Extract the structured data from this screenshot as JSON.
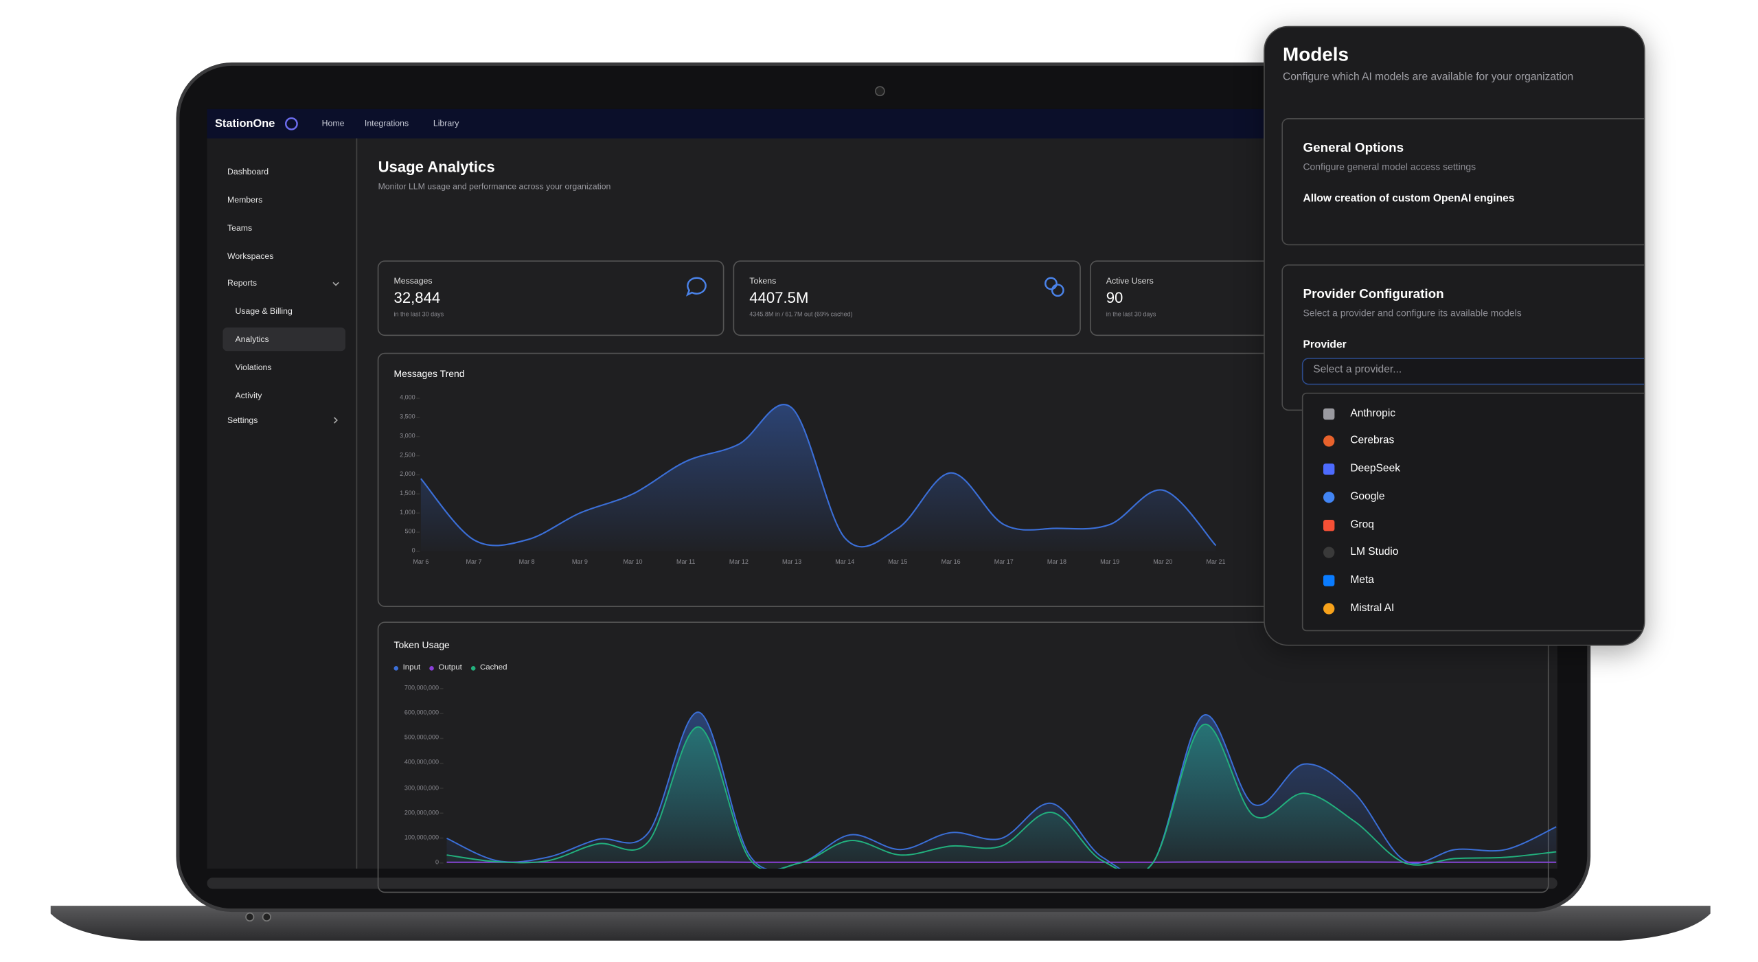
{
  "nav": {
    "brand": "StationOne",
    "links": [
      "Home",
      "Integrations",
      "Library"
    ]
  },
  "sidebar": {
    "items": [
      "Dashboard",
      "Members",
      "Teams",
      "Workspaces",
      "Reports"
    ],
    "reports_items": [
      "Usage & Billing",
      "Analytics",
      "Violations",
      "Activity"
    ],
    "settings": "Settings"
  },
  "page": {
    "title": "Usage Analytics",
    "subtitle": "Monitor LLM usage and performance across your organization"
  },
  "stats": [
    {
      "label": "Messages",
      "value": "32,844",
      "note": "in the last 30 days"
    },
    {
      "label": "Tokens",
      "value": "4407.5M",
      "note": "4345.8M in / 61.7M out (69% cached)"
    },
    {
      "label": "Active Users",
      "value": "90",
      "note": "in the last 30 days"
    }
  ],
  "messages_trend": {
    "type": "line",
    "title": "Messages Trend",
    "color": "#3b6fd8",
    "categories": [
      "Mar 6",
      "Mar 7",
      "Mar 8",
      "Mar 9",
      "Mar 10",
      "Mar 11",
      "Mar 12",
      "Mar 13",
      "Mar 14",
      "Mar 15",
      "Mar 16",
      "Mar 17",
      "Mar 18",
      "Mar 19",
      "Mar 20",
      "Mar 21"
    ],
    "values": [
      1900,
      300,
      300,
      1000,
      1500,
      2350,
      2800,
      3750,
      350,
      600,
      2050,
      700,
      600,
      700,
      1600,
      150
    ],
    "ylim": [
      0,
      4000
    ],
    "yticks": [
      0,
      500,
      {
        "value": 1000,
        "label": "1,000"
      },
      {
        "value": 1500,
        "label": "1,500"
      },
      {
        "value": 2000,
        "label": "2,000"
      },
      {
        "value": 2500,
        "label": "2,500"
      },
      {
        "value": 3000,
        "label": "3,000"
      },
      {
        "value": 3500,
        "label": "3,500"
      },
      {
        "value": 4000,
        "label": "4,000"
      }
    ]
  },
  "token_usage": {
    "type": "area",
    "title": "Token Usage",
    "series": [
      {
        "name": "Input",
        "color": "#3b6fd8",
        "values": [
          99000000,
          9000000,
          23000000,
          95000000,
          122000000,
          605000000,
          32000000,
          0,
          113000000,
          54000000,
          122000000,
          99000000,
          239000000,
          23000000,
          0,
          592000000,
          235000000,
          397000000,
          280000000,
          9000000,
          54000000,
          54000000,
          145000000
        ]
      },
      {
        "name": "Output",
        "color": "#8b3fd9",
        "values": [
          3000000,
          3000000,
          3000000,
          3000000,
          3000000,
          4000000,
          3000000,
          3000000,
          3000000,
          3000000,
          3000000,
          3000000,
          4000000,
          3000000,
          3000000,
          4000000,
          4000000,
          4000000,
          4000000,
          3000000,
          3000000,
          3000000,
          3000000
        ]
      },
      {
        "name": "Cached",
        "color": "#22b07d",
        "values": [
          32000000,
          5000000,
          9000000,
          77000000,
          86000000,
          546000000,
          18000000,
          0,
          90000000,
          32000000,
          68000000,
          68000000,
          203000000,
          9000000,
          0,
          555000000,
          190000000,
          280000000,
          167000000,
          0,
          18000000,
          23000000,
          45000000
        ]
      }
    ],
    "ylim": [
      0,
      700000000
    ],
    "yticks": [
      0,
      {
        "value": 100000000,
        "label": "100,000,000"
      },
      {
        "value": 200000000,
        "label": "200,000,000"
      },
      {
        "value": 300000000,
        "label": "300,000,000"
      },
      {
        "value": 400000000,
        "label": "400,000,000"
      },
      {
        "value": 500000000,
        "label": "500,000,000"
      },
      {
        "value": 600000000,
        "label": "600,000,000"
      },
      {
        "value": 700000000,
        "label": "700,000,000"
      }
    ]
  },
  "models_panel": {
    "title": "Models",
    "subtitle": "Configure which AI models are available for your organization",
    "general": {
      "title": "General Options",
      "subtitle": "Configure general model access settings",
      "option": "Allow creation of custom OpenAI engines"
    },
    "provider": {
      "title": "Provider Configuration",
      "subtitle": "Select a provider and configure its available models",
      "label": "Provider",
      "placeholder": "Select a provider...",
      "options": [
        "Anthropic",
        "Cerebras",
        "DeepSeek",
        "Google",
        "Groq",
        "LM Studio",
        "Meta",
        "Mistral AI"
      ]
    }
  }
}
